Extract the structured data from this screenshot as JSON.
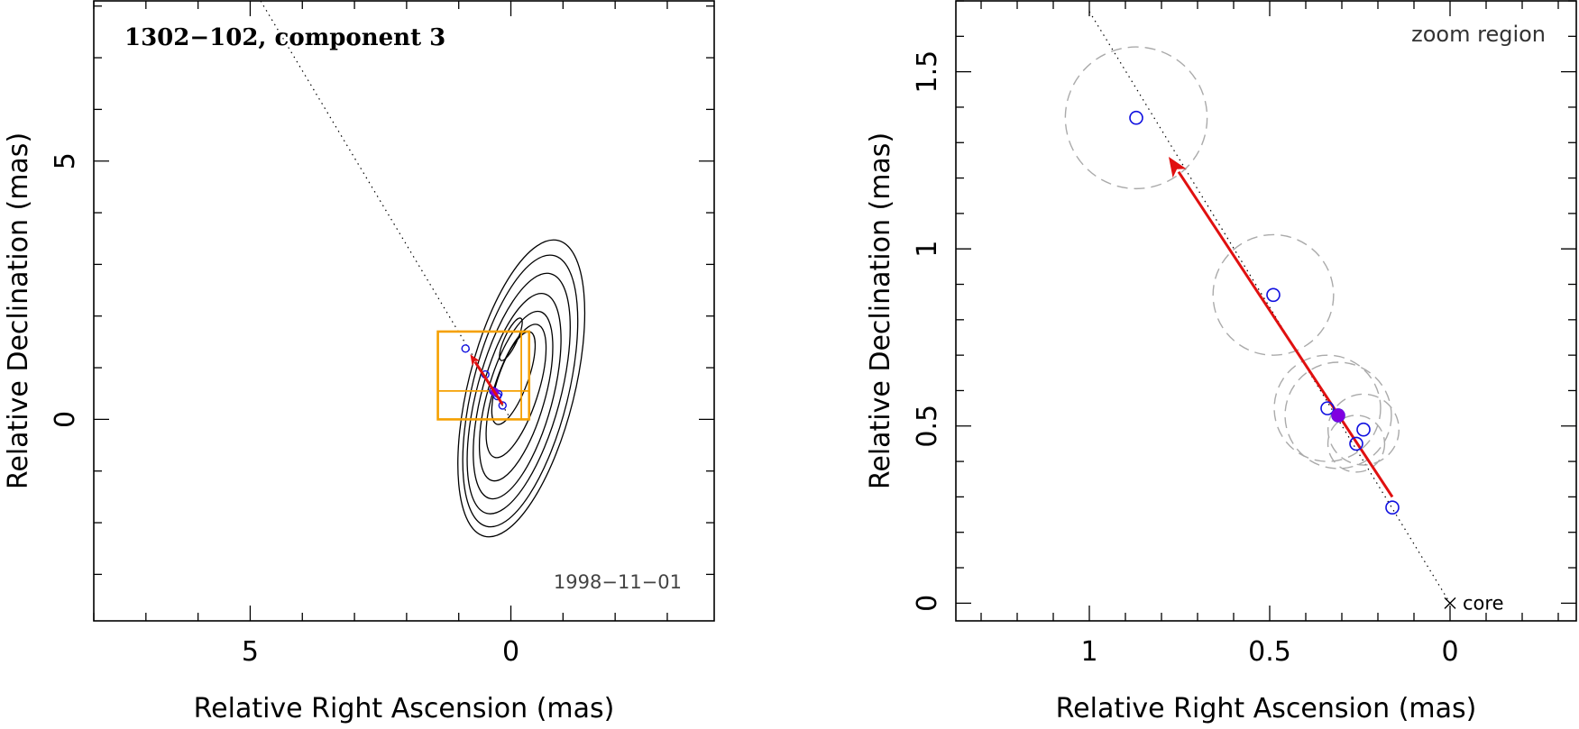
{
  "chart_data": [
    {
      "type": "scatter",
      "panel": "left",
      "title": "1302−102, component 3",
      "date_label": "1998−11−01",
      "xlabel": "Relative Right Ascension (mas)",
      "ylabel": "Relative Declination (mas)",
      "xlim": [
        8.0,
        -3.9
      ],
      "ylim": [
        -3.9,
        8.1
      ],
      "xticks": [
        {
          "v": 5,
          "label": "5"
        },
        {
          "v": 0,
          "label": "0"
        }
      ],
      "yticks": [
        {
          "v": 5,
          "label": "5"
        },
        {
          "v": 0,
          "label": "0"
        }
      ],
      "xminor_step": 1,
      "yminor_step": 1,
      "jet_axis": {
        "from": [
          4.8,
          8.1
        ],
        "to": [
          0,
          0
        ]
      },
      "contour_levels": [
        {
          "ra": 0.0,
          "dec": 1.55,
          "a": 0.45,
          "b": 0.12,
          "rot": 25
        },
        {
          "ra": -0.05,
          "dec": 0.8,
          "a": 0.95,
          "b": 0.28,
          "rot": 20
        },
        {
          "ra": -0.1,
          "dec": 0.55,
          "a": 1.35,
          "b": 0.42,
          "rot": 18
        },
        {
          "ra": -0.1,
          "dec": 0.45,
          "a": 1.7,
          "b": 0.55,
          "rot": 16
        },
        {
          "ra": -0.12,
          "dec": 0.45,
          "a": 2.05,
          "b": 0.68,
          "rot": 15
        },
        {
          "ra": -0.15,
          "dec": 0.5,
          "a": 2.4,
          "b": 0.8,
          "rot": 15
        },
        {
          "ra": -0.18,
          "dec": 0.55,
          "a": 2.7,
          "b": 0.92,
          "rot": 14
        },
        {
          "ra": -0.2,
          "dec": 0.6,
          "a": 2.95,
          "b": 1.02,
          "rot": 14
        }
      ],
      "zoom_box": {
        "ra": [
          1.4,
          -0.35
        ],
        "dec": [
          0.0,
          1.7
        ],
        "divide_ra": -0.2,
        "divide_dec": 0.55
      },
      "positions": [
        {
          "ra": 0.87,
          "dec": 1.37
        },
        {
          "ra": 0.49,
          "dec": 0.87
        },
        {
          "ra": 0.34,
          "dec": 0.55
        },
        {
          "ra": 0.31,
          "dec": 0.53
        },
        {
          "ra": 0.24,
          "dec": 0.49
        },
        {
          "ra": 0.26,
          "dec": 0.45
        },
        {
          "ra": 0.16,
          "dec": 0.27
        }
      ],
      "mean_position": {
        "ra": 0.31,
        "dec": 0.53
      },
      "motion_vector": {
        "from": [
          0.16,
          0.29
        ],
        "to": [
          0.78,
          1.26
        ]
      },
      "colors": {
        "points": "#1010e0",
        "vector": "#e01010",
        "box": "#f5a000",
        "mean": "#8000e0"
      }
    },
    {
      "type": "scatter",
      "panel": "right",
      "title": "zoom region",
      "core_label": "core",
      "xlabel": "Relative Right Ascension (mas)",
      "ylabel": "Relative Declination (mas)",
      "xlim": [
        1.37,
        -0.35
      ],
      "ylim": [
        -0.05,
        1.7
      ],
      "xticks": [
        {
          "v": 1,
          "label": "1"
        },
        {
          "v": 0.5,
          "label": "0.5"
        },
        {
          "v": 0,
          "label": "0"
        }
      ],
      "yticks": [
        {
          "v": 0,
          "label": "0"
        },
        {
          "v": 0.5,
          "label": "0.5"
        },
        {
          "v": 1,
          "label": "1"
        },
        {
          "v": 1.5,
          "label": "1.5"
        }
      ],
      "xminor_step": 0.1,
      "yminor_step": 0.1,
      "jet_axis": {
        "from": [
          1.0,
          1.67
        ],
        "to": [
          0,
          0
        ]
      },
      "positions": [
        {
          "ra": 0.87,
          "dec": 1.37,
          "err": 0.2
        },
        {
          "ra": 0.49,
          "dec": 0.87,
          "err": 0.17
        },
        {
          "ra": 0.34,
          "dec": 0.55,
          "err": 0.15
        },
        {
          "ra": 0.31,
          "dec": 0.53,
          "err": 0.15
        },
        {
          "ra": 0.24,
          "dec": 0.49,
          "err": 0.1
        },
        {
          "ra": 0.26,
          "dec": 0.45,
          "err": 0.08
        },
        {
          "ra": 0.16,
          "dec": 0.27,
          "err": 0.0
        }
      ],
      "mean_position": {
        "ra": 0.31,
        "dec": 0.53
      },
      "motion_vector": {
        "from": [
          0.16,
          0.3
        ],
        "to": [
          0.78,
          1.26
        ]
      },
      "colors": {
        "points": "#1010e0",
        "vector": "#e01010",
        "error_circles": "#aaaaaa",
        "mean": "#8000e0"
      }
    }
  ]
}
